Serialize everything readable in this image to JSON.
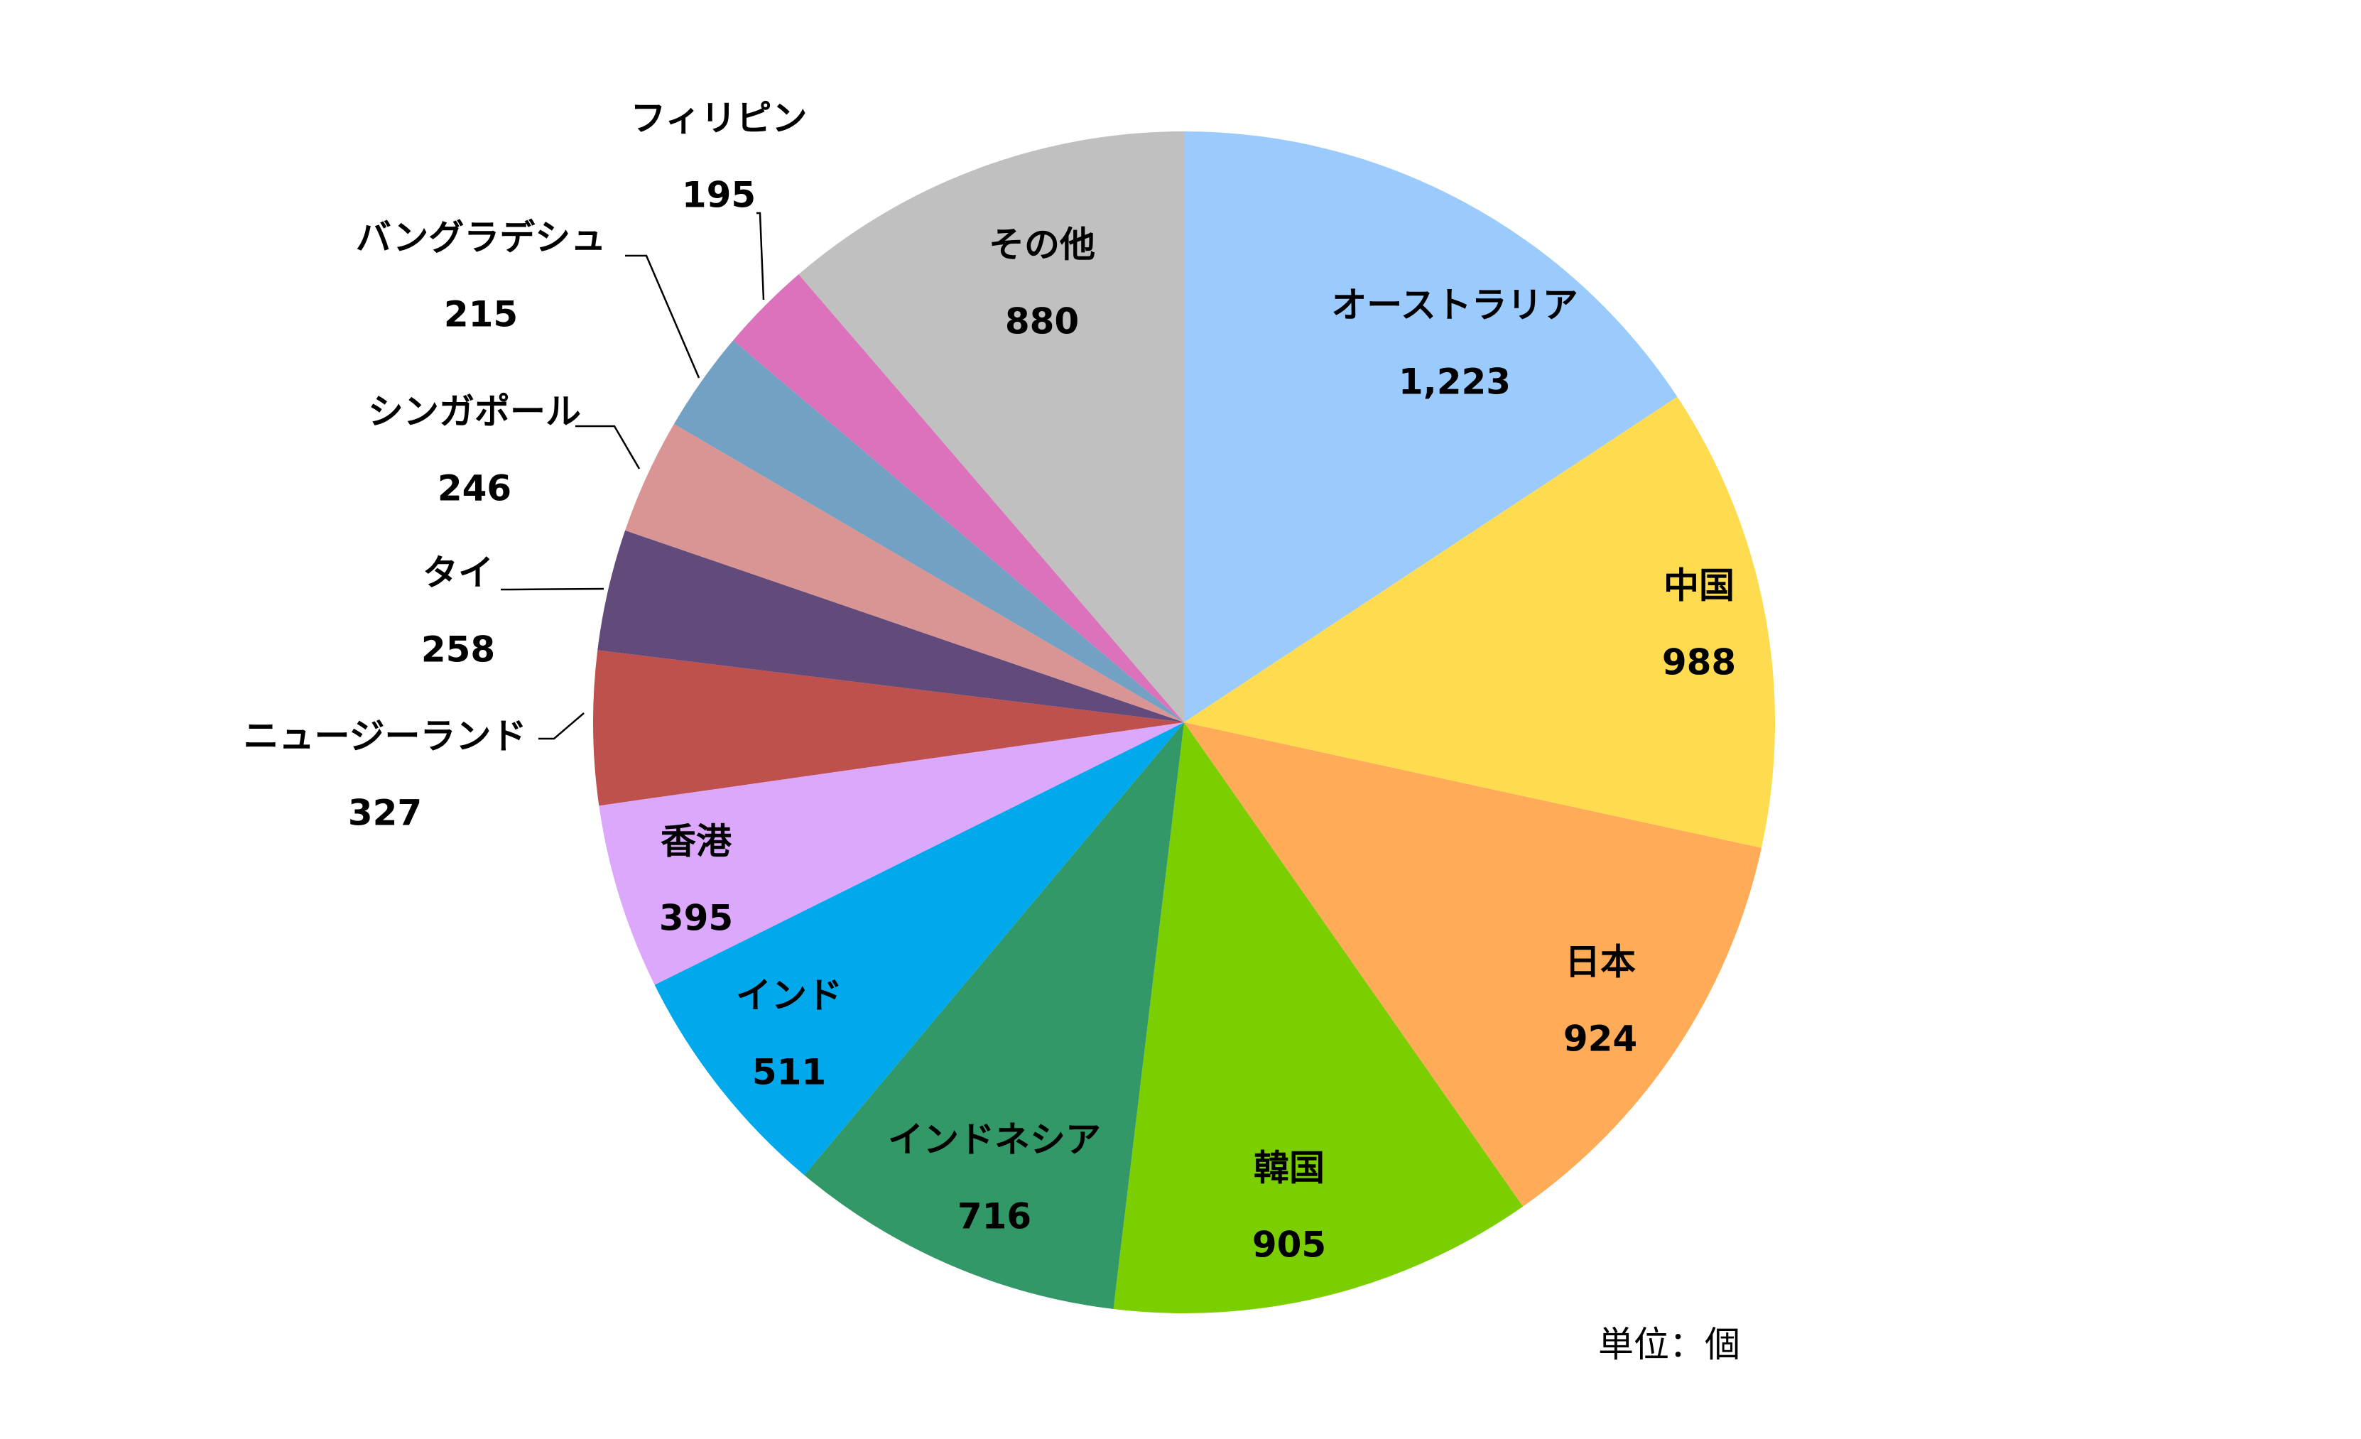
{
  "chart_data": {
    "type": "pie",
    "unit_note": "単位：個",
    "start_angle_deg": 0,
    "direction": "clockwise",
    "slices": [
      {
        "name": "オーストラリア",
        "value": 1223,
        "value_label": "1,223",
        "color": "#9BCBFC"
      },
      {
        "name": "中国",
        "value": 988,
        "value_label": "988",
        "color": "#FFDC4F"
      },
      {
        "name": "日本",
        "value": 924,
        "value_label": "924",
        "color": "#FFAB57"
      },
      {
        "name": "韓国",
        "value": 905,
        "value_label": "905",
        "color": "#7BCF00"
      },
      {
        "name": "インドネシア",
        "value": 716,
        "value_label": "716",
        "color": "#339868"
      },
      {
        "name": "インド",
        "value": 511,
        "value_label": "511",
        "color": "#00A9EC"
      },
      {
        "name": "香港",
        "value": 395,
        "value_label": "395",
        "color": "#DBA8FC"
      },
      {
        "name": "ニュージーランド",
        "value": 327,
        "value_label": "327",
        "color": "#BE504D"
      },
      {
        "name": "タイ",
        "value": 258,
        "value_label": "258",
        "color": "#624A7B"
      },
      {
        "name": "シンガポール",
        "value": 246,
        "value_label": "246",
        "color": "#D99594"
      },
      {
        "name": "バングラデシュ",
        "value": 215,
        "value_label": "215",
        "color": "#72A1C4"
      },
      {
        "name": "フィリピン",
        "value": 195,
        "value_label": "195",
        "color": "#DC72BC"
      },
      {
        "name": "その他",
        "value": 880,
        "value_label": "880",
        "color": "#C0C0C0"
      }
    ]
  }
}
